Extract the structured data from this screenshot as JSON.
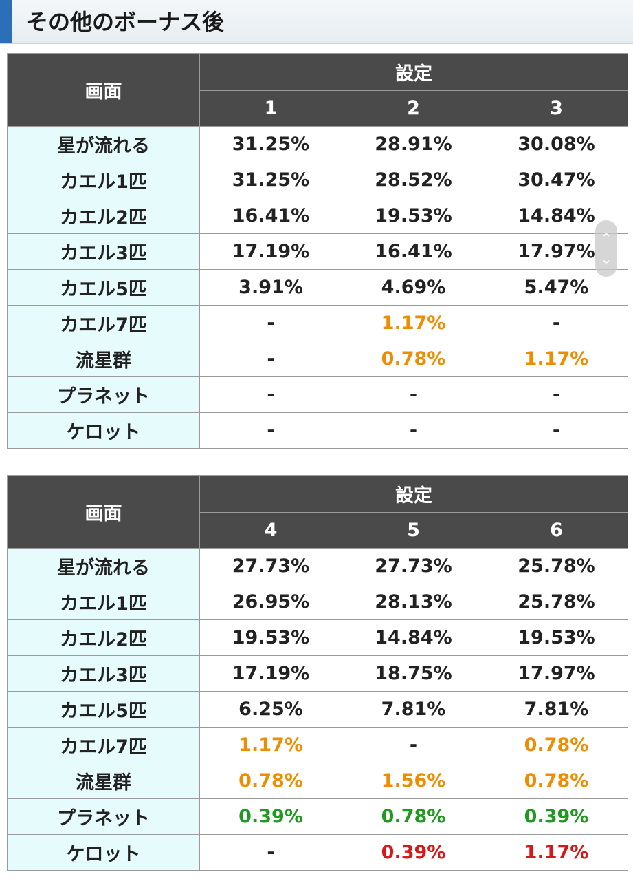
{
  "heading": {
    "title": "その他のボーナス後"
  },
  "tables": [
    {
      "corner_label": "画面",
      "group_label": "設定",
      "columns": [
        "1",
        "2",
        "3"
      ],
      "rows": [
        {
          "label": "星が流れる",
          "values": [
            {
              "text": "31.25%",
              "tone": "normal"
            },
            {
              "text": "28.91%",
              "tone": "normal"
            },
            {
              "text": "30.08%",
              "tone": "normal"
            }
          ]
        },
        {
          "label": "カエル1匹",
          "values": [
            {
              "text": "31.25%",
              "tone": "normal"
            },
            {
              "text": "28.52%",
              "tone": "normal"
            },
            {
              "text": "30.47%",
              "tone": "normal"
            }
          ]
        },
        {
          "label": "カエル2匹",
          "values": [
            {
              "text": "16.41%",
              "tone": "normal"
            },
            {
              "text": "19.53%",
              "tone": "normal"
            },
            {
              "text": "14.84%",
              "tone": "normal"
            }
          ]
        },
        {
          "label": "カエル3匹",
          "values": [
            {
              "text": "17.19%",
              "tone": "normal"
            },
            {
              "text": "16.41%",
              "tone": "normal"
            },
            {
              "text": "17.97%",
              "tone": "normal"
            }
          ]
        },
        {
          "label": "カエル5匹",
          "values": [
            {
              "text": "3.91%",
              "tone": "normal"
            },
            {
              "text": "4.69%",
              "tone": "normal"
            },
            {
              "text": "5.47%",
              "tone": "normal"
            }
          ]
        },
        {
          "label": "カエル7匹",
          "values": [
            {
              "text": "-",
              "tone": "normal"
            },
            {
              "text": "1.17%",
              "tone": "orange"
            },
            {
              "text": "-",
              "tone": "normal"
            }
          ]
        },
        {
          "label": "流星群",
          "values": [
            {
              "text": "-",
              "tone": "normal"
            },
            {
              "text": "0.78%",
              "tone": "orange"
            },
            {
              "text": "1.17%",
              "tone": "orange"
            }
          ]
        },
        {
          "label": "プラネット",
          "values": [
            {
              "text": "-",
              "tone": "normal"
            },
            {
              "text": "-",
              "tone": "normal"
            },
            {
              "text": "-",
              "tone": "normal"
            }
          ]
        },
        {
          "label": "ケロット",
          "values": [
            {
              "text": "-",
              "tone": "normal"
            },
            {
              "text": "-",
              "tone": "normal"
            },
            {
              "text": "-",
              "tone": "normal"
            }
          ]
        }
      ]
    },
    {
      "corner_label": "画面",
      "group_label": "設定",
      "columns": [
        "4",
        "5",
        "6"
      ],
      "rows": [
        {
          "label": "星が流れる",
          "values": [
            {
              "text": "27.73%",
              "tone": "normal"
            },
            {
              "text": "27.73%",
              "tone": "normal"
            },
            {
              "text": "25.78%",
              "tone": "normal"
            }
          ]
        },
        {
          "label": "カエル1匹",
          "values": [
            {
              "text": "26.95%",
              "tone": "normal"
            },
            {
              "text": "28.13%",
              "tone": "normal"
            },
            {
              "text": "25.78%",
              "tone": "normal"
            }
          ]
        },
        {
          "label": "カエル2匹",
          "values": [
            {
              "text": "19.53%",
              "tone": "normal"
            },
            {
              "text": "14.84%",
              "tone": "normal"
            },
            {
              "text": "19.53%",
              "tone": "normal"
            }
          ]
        },
        {
          "label": "カエル3匹",
          "values": [
            {
              "text": "17.19%",
              "tone": "normal"
            },
            {
              "text": "18.75%",
              "tone": "normal"
            },
            {
              "text": "17.97%",
              "tone": "normal"
            }
          ]
        },
        {
          "label": "カエル5匹",
          "values": [
            {
              "text": "6.25%",
              "tone": "normal"
            },
            {
              "text": "7.81%",
              "tone": "normal"
            },
            {
              "text": "7.81%",
              "tone": "normal"
            }
          ]
        },
        {
          "label": "カエル7匹",
          "values": [
            {
              "text": "1.17%",
              "tone": "orange"
            },
            {
              "text": "-",
              "tone": "normal"
            },
            {
              "text": "0.78%",
              "tone": "orange"
            }
          ]
        },
        {
          "label": "流星群",
          "values": [
            {
              "text": "0.78%",
              "tone": "orange"
            },
            {
              "text": "1.56%",
              "tone": "orange"
            },
            {
              "text": "0.78%",
              "tone": "orange"
            }
          ]
        },
        {
          "label": "プラネット",
          "values": [
            {
              "text": "0.39%",
              "tone": "green"
            },
            {
              "text": "0.78%",
              "tone": "green"
            },
            {
              "text": "0.39%",
              "tone": "green"
            }
          ]
        },
        {
          "label": "ケロット",
          "values": [
            {
              "text": "-",
              "tone": "normal"
            },
            {
              "text": "0.39%",
              "tone": "red"
            },
            {
              "text": "1.17%",
              "tone": "red"
            }
          ]
        }
      ]
    }
  ],
  "colors": {
    "header_bg": "#4a4a4a",
    "label_bg": "#e6fbfb",
    "orange": "#f08c00",
    "green": "#1e9a1e",
    "red": "#d81818",
    "accent_bar": "#2b6fb8"
  },
  "scroll_widget": {
    "up_icon": "chevron-up-icon",
    "down_icon": "chevron-down-icon"
  }
}
